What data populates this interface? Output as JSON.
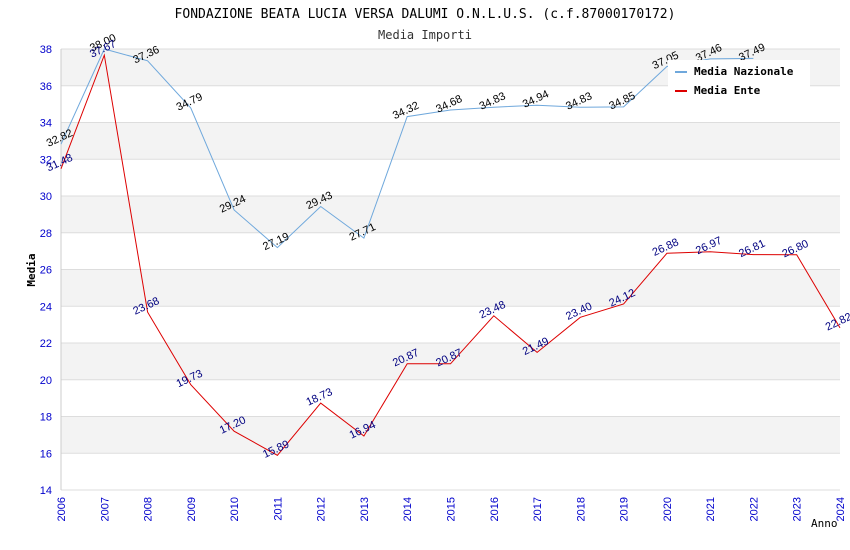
{
  "chart_data": {
    "type": "line",
    "title": "FONDAZIONE BEATA LUCIA VERSA DALUMI O.N.L.U.S. (c.f.87000170172)",
    "subtitle": "Media Importi",
    "xlabel": "Anno",
    "ylabel": "Media",
    "ylim": [
      14,
      38
    ],
    "yticks": [
      14,
      16,
      18,
      20,
      22,
      24,
      26,
      28,
      30,
      32,
      34,
      36,
      38
    ],
    "x": [
      "2006",
      "2007",
      "2008",
      "2009",
      "2010",
      "2011",
      "2012",
      "2013",
      "2014",
      "2015",
      "2016",
      "2017",
      "2018",
      "2019",
      "2020",
      "2021",
      "2022",
      "2023",
      "2024"
    ],
    "grid": true,
    "legend_position": "top-right",
    "series": [
      {
        "name": "Media Nazionale",
        "color": "#6fa8dc",
        "values": [
          32.82,
          38.0,
          37.36,
          34.79,
          29.24,
          27.19,
          29.43,
          27.71,
          34.32,
          34.68,
          34.83,
          34.94,
          34.83,
          34.85,
          37.05,
          37.46,
          37.49,
          null,
          null
        ],
        "labels": [
          "32.82",
          "38.00",
          "37.36",
          "34.79",
          "29.24",
          "27.19",
          "29.43",
          "27.71",
          "34.32",
          "34.68",
          "34.83",
          "34.94",
          "34.83",
          "34.85",
          "37.05",
          "37.46",
          "37.49",
          "",
          ""
        ]
      },
      {
        "name": "Media Ente",
        "color": "#dd0000",
        "values": [
          31.48,
          37.67,
          23.68,
          19.73,
          17.2,
          15.89,
          18.73,
          16.94,
          20.87,
          20.87,
          23.48,
          21.49,
          23.4,
          24.12,
          26.88,
          26.97,
          26.81,
          26.8,
          22.82
        ],
        "labels": [
          "31.48",
          "37.67",
          "23.68",
          "19.73",
          "17.20",
          "15.89",
          "18.73",
          "16.94",
          "20.87",
          "20.87",
          "23.48",
          "21.49",
          "23.40",
          "24.12",
          "26.88",
          "26.97",
          "26.81",
          "26.80",
          "22.82"
        ]
      }
    ]
  }
}
